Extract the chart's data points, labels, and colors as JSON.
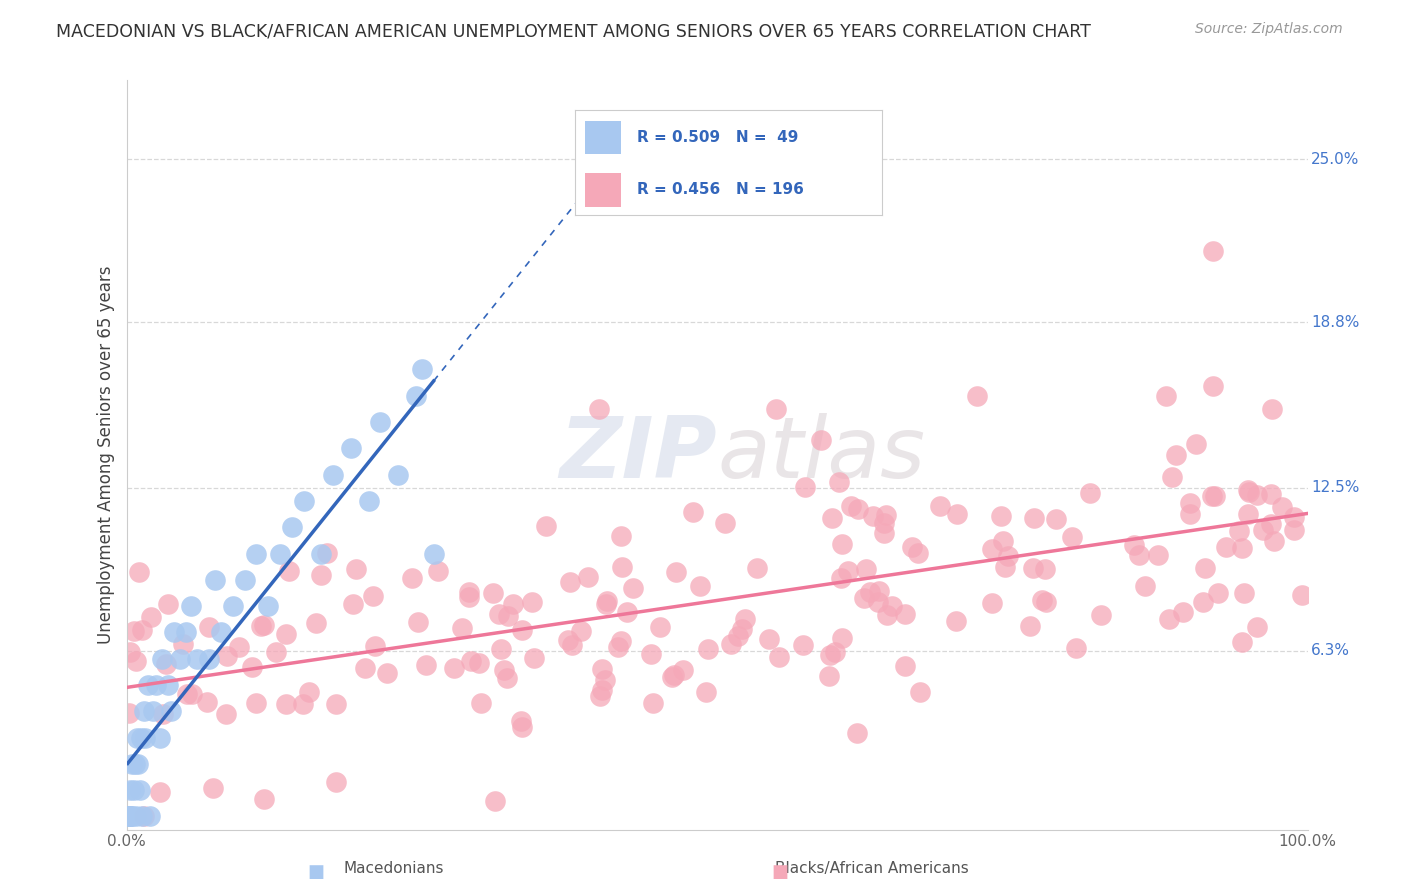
{
  "title": "MACEDONIAN VS BLACK/AFRICAN AMERICAN UNEMPLOYMENT AMONG SENIORS OVER 65 YEARS CORRELATION CHART",
  "source": "Source: ZipAtlas.com",
  "ylabel": "Unemployment Among Seniors over 65 years",
  "xlim": [
    0,
    1.0
  ],
  "ylim": [
    -0.005,
    0.28
  ],
  "ytick_positions": [
    0.063,
    0.125,
    0.188,
    0.25
  ],
  "ytick_labels": [
    "6.3%",
    "12.5%",
    "18.8%",
    "25.0%"
  ],
  "macedonian_color": "#a8c8f0",
  "black_color": "#f5a8b8",
  "regression_blue_color": "#3366bb",
  "regression_pink_color": "#ee7799",
  "watermark_zip": "ZIP",
  "watermark_atlas": "atlas",
  "background_color": "#ffffff",
  "grid_color": "#d8d8d8"
}
